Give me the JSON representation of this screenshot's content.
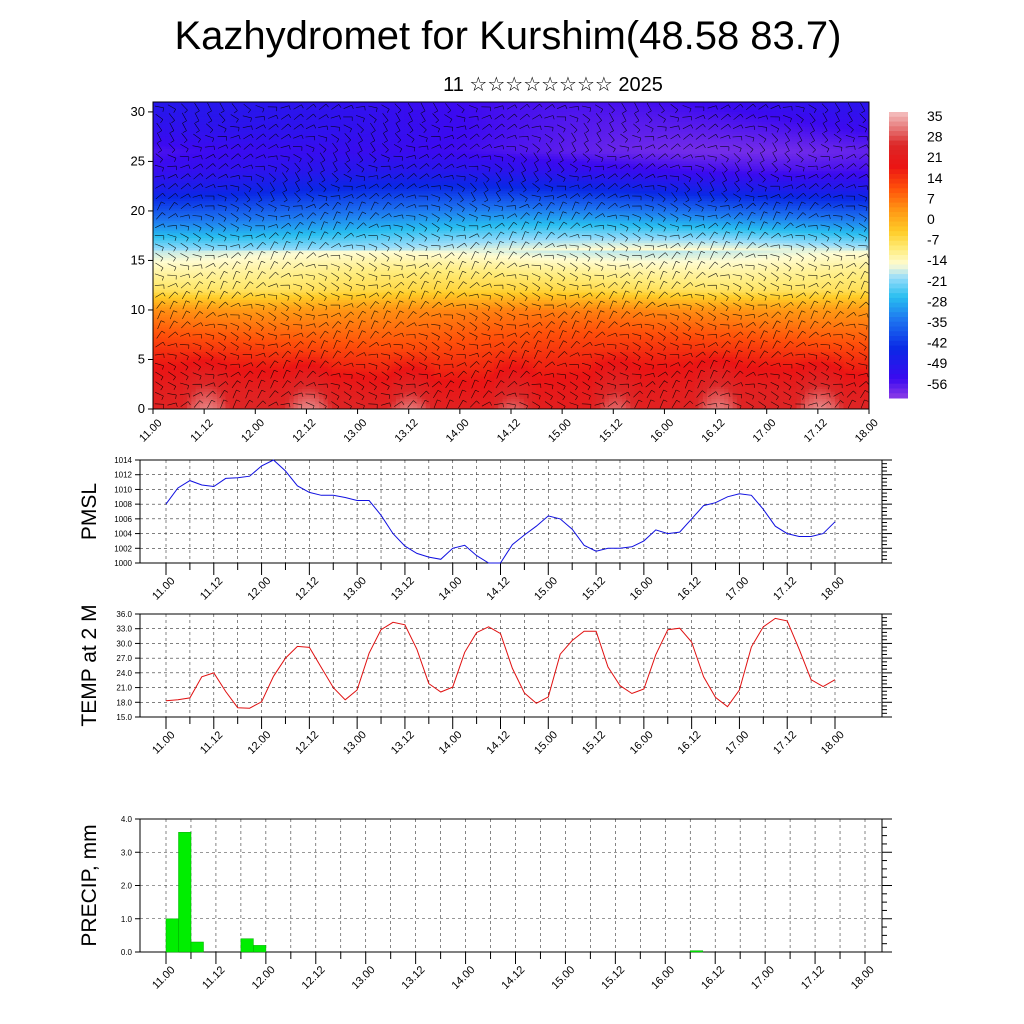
{
  "page": {
    "title": "Kazhydromet for Kurshim(48.58 83.7)",
    "subtitle": "11 ☆☆☆☆☆☆☆☆ 2025"
  },
  "colors": {
    "pmsl_line": "#1010e0",
    "temp_line": "#e01010",
    "precip_bar": "#00ee00",
    "precip_bar_edge": "#00aa00",
    "grid": "#000000",
    "cross_section_cold": "#3010f0",
    "cross_section_warm": "#e01010"
  },
  "time_labels": [
    "11.00",
    "11.12",
    "12.00",
    "12.12",
    "13.00",
    "13.12",
    "14.00",
    "14.12",
    "15.00",
    "15.12",
    "16.00",
    "16.12",
    "17.00",
    "17.12",
    "18.00"
  ],
  "chart_data": [
    {
      "type": "heatmap",
      "name": "cross-section",
      "x_labels": [
        "11.00",
        "11.12",
        "12.00",
        "12.12",
        "13.00",
        "13.12",
        "14.00",
        "14.12",
        "15.00",
        "15.12",
        "16.00",
        "16.12",
        "17.00",
        "17.12",
        "18.00"
      ],
      "yticks": [
        "0",
        "5",
        "10",
        "15",
        "20",
        "25",
        "30"
      ],
      "ylim": [
        0,
        31
      ],
      "colorbar_labels": [
        "35",
        "28",
        "21",
        "14",
        "7",
        "0",
        "-7",
        "-14",
        "-21",
        "-28",
        "-35",
        "-42",
        "-49",
        "-56"
      ],
      "colorbar_range": [
        -63,
        42
      ],
      "level_temps": {
        "levels": [
          0,
          2,
          5,
          8,
          10,
          12,
          14,
          16,
          18,
          20,
          22,
          24,
          26,
          28,
          31
        ],
        "values": [
          28,
          25,
          19,
          12,
          7,
          -5,
          -10,
          -16,
          -26,
          -36,
          -46,
          -54,
          -58,
          -56,
          -54
        ]
      },
      "wind_barbs": true
    },
    {
      "type": "line",
      "name": "PMSL",
      "ylabel": "PMSL",
      "ylim": [
        1000,
        1014
      ],
      "yticks": [
        "1000",
        "1002",
        "1004",
        "1006",
        "1008",
        "1010",
        "1012",
        "1014"
      ],
      "x": [
        0,
        3,
        6,
        9,
        12,
        15,
        18,
        21,
        24,
        27,
        30,
        33,
        36,
        39,
        42,
        45,
        48,
        51,
        54,
        57,
        60,
        63,
        66,
        69,
        72,
        75,
        78,
        81,
        84,
        87,
        90,
        93,
        96,
        99,
        102,
        105,
        108,
        111,
        114,
        117,
        120,
        123,
        126,
        129,
        132,
        135,
        138,
        141,
        144,
        147,
        150,
        153,
        156,
        159,
        162,
        165,
        168
      ],
      "values": [
        1008.0,
        1010.2,
        1011.2,
        1010.6,
        1010.4,
        1011.5,
        1011.6,
        1011.8,
        1013.2,
        1014.0,
        1012.5,
        1010.5,
        1009.6,
        1009.2,
        1009.2,
        1008.9,
        1008.5,
        1008.5,
        1006.5,
        1004.0,
        1002.3,
        1001.3,
        1000.8,
        1000.5,
        1002.0,
        1002.4,
        1001.0,
        1000.0,
        1000.0,
        1002.5,
        1003.8,
        1005.0,
        1006.4,
        1006.0,
        1004.6,
        1002.4,
        1001.6,
        1002.0,
        1002.0,
        1002.2,
        1003.0,
        1004.5,
        1004.0,
        1004.2,
        1006.0,
        1007.8,
        1008.2,
        1009.0,
        1009.4,
        1009.2,
        1007.3,
        1005.0,
        1004.0,
        1003.6,
        1003.6,
        1004.0,
        1005.6
      ]
    },
    {
      "type": "line",
      "name": "TEMP at 2 M",
      "ylabel": "TEMP at 2 M",
      "ylim": [
        15,
        36
      ],
      "yticks": [
        "15.0",
        "18.0",
        "21.0",
        "24.0",
        "27.0",
        "30.0",
        "33.0",
        "36.0"
      ],
      "x": [
        0,
        3,
        6,
        9,
        12,
        15,
        18,
        21,
        24,
        27,
        30,
        33,
        36,
        39,
        42,
        45,
        48,
        51,
        54,
        57,
        60,
        63,
        66,
        69,
        72,
        75,
        78,
        81,
        84,
        87,
        90,
        93,
        96,
        99,
        102,
        105,
        108,
        111,
        114,
        117,
        120,
        123,
        126,
        129,
        132,
        135,
        138,
        141,
        144,
        147,
        150,
        153,
        156,
        159,
        162,
        165,
        168
      ],
      "values": [
        18.3,
        18.5,
        18.9,
        23.2,
        24.0,
        20.2,
        16.9,
        16.8,
        18.1,
        23.3,
        27.0,
        29.4,
        29.2,
        25.1,
        21.0,
        18.5,
        20.5,
        28.0,
        32.8,
        34.3,
        33.8,
        28.8,
        21.8,
        20.1,
        21.1,
        28.2,
        32.2,
        33.4,
        32.0,
        24.9,
        19.9,
        17.8,
        19.1,
        27.8,
        30.6,
        32.5,
        32.5,
        25.2,
        21.4,
        19.8,
        20.7,
        27.7,
        32.8,
        33.1,
        30.3,
        23.2,
        19.0,
        17.1,
        20.5,
        29.3,
        33.4,
        35.1,
        34.6,
        28.8,
        22.6,
        21.2,
        22.6
      ]
    },
    {
      "type": "bar",
      "name": "PRECIP, mm",
      "ylabel": "PRECIP, mm",
      "ylim": [
        0,
        4
      ],
      "yticks": [
        "0.0",
        "1.0",
        "2.0",
        "3.0",
        "4.0"
      ],
      "x": [
        3,
        6,
        9,
        12,
        15,
        18,
        21,
        24,
        27,
        30,
        99,
        102,
        105,
        108,
        111,
        114,
        117,
        120,
        123,
        126,
        129,
        132,
        135,
        138
      ],
      "values": [
        1.0,
        3.6,
        0.3,
        0.0,
        0.0,
        0.0,
        0.4,
        0.2,
        0.0,
        0.0,
        0.0,
        0.0,
        0.0,
        0.0,
        0.0,
        0.0,
        0.0,
        0.0,
        0.0,
        0.0,
        0.04,
        0.0,
        0.0,
        0.0
      ]
    }
  ]
}
